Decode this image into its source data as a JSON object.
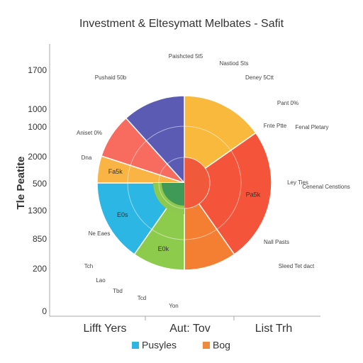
{
  "chart_data": {
    "type": "pie",
    "title": "Investment & Eltesymatt Melbates - Safit",
    "y_label": "Tle Peatite",
    "y_labels": [
      "1700",
      "1000",
      "1000",
      "2000",
      "500",
      "1300",
      "850",
      "200",
      "0"
    ],
    "x_labels": [
      "Lifft Yers",
      "Aut: Tov",
      "List Trh"
    ],
    "categories": [
      null,
      "Pa5k",
      null,
      "E0k",
      "E0s",
      "Fa5k",
      null,
      null
    ],
    "values": [
      55,
      90,
      35,
      35,
      55,
      18,
      30,
      42
    ],
    "colors": [
      "#f8b93c",
      "#f4553a",
      "#f47f32",
      "#8dcb4c",
      "#2cb6e3",
      "#f9b443",
      "#f76c5e",
      "#5b5bb3"
    ],
    "legend": [
      {
        "name": "Pusyles",
        "color": "#2cb6e3"
      },
      {
        "name": "Bog",
        "color": "#f08a3a"
      }
    ],
    "annotations": [
      "Paishcted 5t5",
      "Nastiod Sts",
      "Deney 5Ctt",
      "Pant 0%",
      "Fnte Ptte",
      "Fenal Pletary",
      "Ley Ties",
      "Cenenal Censtions",
      "Sleed Tet dact",
      "Nall Pasts",
      "Aniset 0%",
      "Dna",
      "Pushaid 50b",
      "Ne Eaes",
      "Tch",
      "Lao",
      "Tbd",
      "Tcd",
      "Yon"
    ]
  }
}
